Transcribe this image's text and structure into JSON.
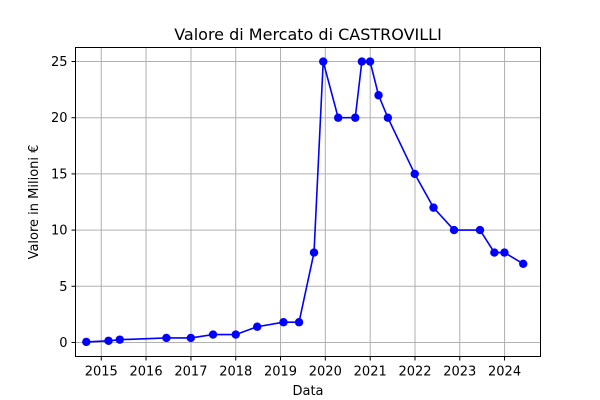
{
  "chart_data": {
    "type": "line",
    "title": "Valore di Mercato di CASTROVILLI",
    "xlabel": "Data",
    "ylabel": "Valore in Milioni €",
    "x_tick_labels": [
      "2015",
      "2016",
      "2017",
      "2018",
      "2019",
      "2020",
      "2021",
      "2022",
      "2023",
      "2024"
    ],
    "y_tick_labels": [
      "0",
      "5",
      "10",
      "15",
      "20",
      "25"
    ],
    "xlim": [
      "2014-06-05",
      "2024-10-20"
    ],
    "ylim": [
      -1.25,
      26.25
    ],
    "grid": true,
    "series": [
      {
        "color": "#0000ff",
        "marker": "circle",
        "points": [
          {
            "x": "2014-09-01",
            "y": 0.05
          },
          {
            "x": "2015-03-01",
            "y": 0.15
          },
          {
            "x": "2015-06-01",
            "y": 0.25
          },
          {
            "x": "2016-06-15",
            "y": 0.4
          },
          {
            "x": "2016-12-31",
            "y": 0.4
          },
          {
            "x": "2017-06-30",
            "y": 0.7
          },
          {
            "x": "2018-01-01",
            "y": 0.7
          },
          {
            "x": "2018-06-25",
            "y": 1.4
          },
          {
            "x": "2019-01-25",
            "y": 1.8
          },
          {
            "x": "2019-06-01",
            "y": 1.8
          },
          {
            "x": "2019-10-01",
            "y": 8
          },
          {
            "x": "2019-12-15",
            "y": 25
          },
          {
            "x": "2020-04-15",
            "y": 20
          },
          {
            "x": "2020-09-01",
            "y": 20
          },
          {
            "x": "2020-10-25",
            "y": 25
          },
          {
            "x": "2020-12-31",
            "y": 25
          },
          {
            "x": "2021-03-10",
            "y": 22
          },
          {
            "x": "2021-05-25",
            "y": 20
          },
          {
            "x": "2021-12-30",
            "y": 15
          },
          {
            "x": "2022-06-01",
            "y": 12
          },
          {
            "x": "2022-11-15",
            "y": 10
          },
          {
            "x": "2023-06-15",
            "y": 10
          },
          {
            "x": "2023-10-10",
            "y": 8
          },
          {
            "x": "2023-12-31",
            "y": 8
          },
          {
            "x": "2024-06-01",
            "y": 7
          }
        ]
      }
    ]
  }
}
